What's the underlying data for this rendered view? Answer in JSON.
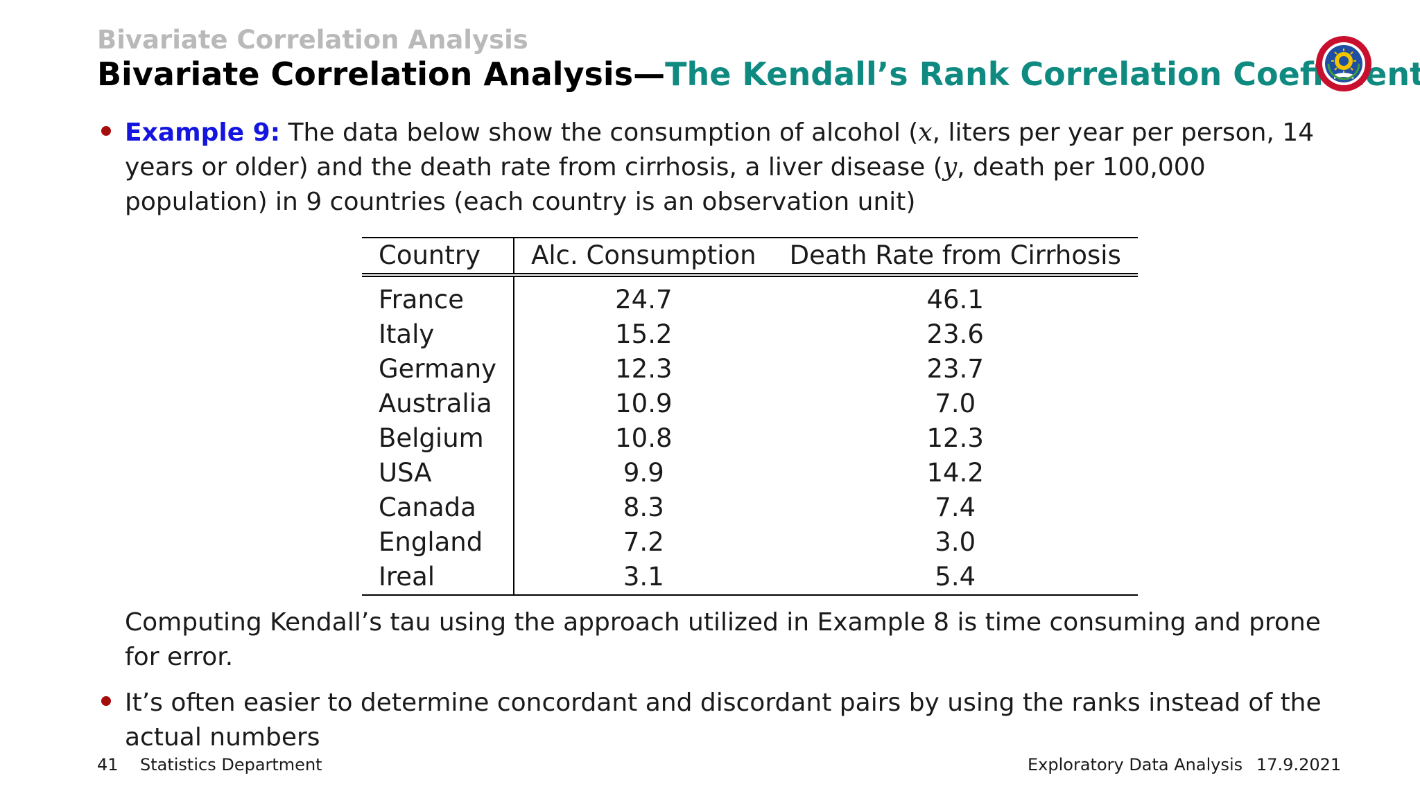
{
  "header": {
    "section_title": "Bivariate Correlation Analysis",
    "frame_title_main": "Bivariate Correlation Analysis",
    "frame_title_sep": "—",
    "frame_title_accent": "The Kendall’s Rank Correlation Coefficient",
    "logo_icon": "university-seal-icon"
  },
  "colors": {
    "accent_teal": "#0f8a80",
    "example_blue": "#1515e0",
    "bullet_red": "#a50d0d",
    "section_gray": "#b9b9b9"
  },
  "content": {
    "example_label": "Example 9:",
    "example_text_1": " The data below show the consumption of alcohol (",
    "var_x": "x",
    "example_text_2": ", liters per year per person, 14 years or older) and the death rate from cirrhosis, a liver disease (",
    "var_y": "y",
    "example_text_3": ", death per 100,000 population) in 9 countries (each country is an observation unit)",
    "note": "Computing Kendall’s tau using the approach utilized in Example 8 is time consuming and prone for error.",
    "bullet_2": "It’s often easier to determine concordant and discordant pairs by using the ranks instead of the actual numbers"
  },
  "table": {
    "headers": [
      "Country",
      "Alc. Consumption",
      "Death Rate from Cirrhosis"
    ],
    "rows": [
      [
        "France",
        "24.7",
        "46.1"
      ],
      [
        "Italy",
        "15.2",
        "23.6"
      ],
      [
        "Germany",
        "12.3",
        "23.7"
      ],
      [
        "Australia",
        "10.9",
        "7.0"
      ],
      [
        "Belgium",
        "10.8",
        "12.3"
      ],
      [
        "USA",
        "9.9",
        "14.2"
      ],
      [
        "Canada",
        "8.3",
        "7.4"
      ],
      [
        "England",
        "7.2",
        "3.0"
      ],
      [
        "Ireal",
        "3.1",
        "5.4"
      ]
    ]
  },
  "footer": {
    "page_number": "41",
    "department": "Statistics Department",
    "course": "Exploratory Data Analysis",
    "date": "17.9.2021"
  }
}
